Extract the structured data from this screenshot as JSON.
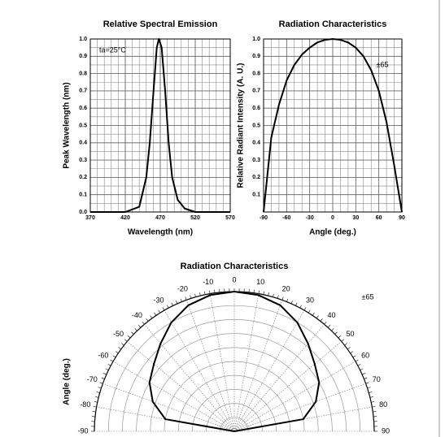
{
  "chart_data": [
    {
      "type": "line",
      "title": "Relative Spectral Emission",
      "x_label": "Wavelength (nm)",
      "y_label": "Peak Wavelength (nm)",
      "annotation": "ta=25°C",
      "x": [
        370,
        420,
        440,
        450,
        455,
        460,
        465,
        468,
        472,
        477,
        482,
        487,
        495,
        505,
        520,
        570
      ],
      "values": [
        0,
        0,
        0.03,
        0.2,
        0.4,
        0.68,
        0.95,
        1.0,
        0.95,
        0.7,
        0.4,
        0.2,
        0.07,
        0.02,
        0,
        0
      ],
      "color": "#000000",
      "xlim": [
        370,
        570
      ],
      "xticks": [
        370,
        420,
        470,
        520,
        570
      ],
      "ylim": [
        0,
        1
      ],
      "yticks": [
        {
          "value": 0,
          "label": "0.0"
        },
        0.1,
        0.2,
        0.3,
        0.4,
        0.5,
        0.6,
        0.7,
        0.8,
        0.9,
        {
          "value": 1,
          "label": "1.0"
        }
      ],
      "grid": true
    },
    {
      "type": "line",
      "title": "Radiation Characteristics",
      "x_label": "Angle (deg.)",
      "y_label": "Relative Radiant Intensity (A. U.)",
      "annotation": "±65",
      "x": [
        -90,
        -80,
        -70,
        -60,
        -50,
        -40,
        -30,
        -20,
        -10,
        0,
        10,
        20,
        30,
        40,
        50,
        60,
        70,
        80,
        90
      ],
      "values": [
        0,
        0.43,
        0.62,
        0.76,
        0.85,
        0.91,
        0.95,
        0.98,
        0.995,
        1.0,
        0.995,
        0.98,
        0.95,
        0.9,
        0.82,
        0.7,
        0.52,
        0.27,
        0
      ],
      "color": "#000000",
      "xlim": [
        -90,
        90
      ],
      "xticks": [
        -90,
        -60,
        -30,
        0,
        30,
        60,
        90
      ],
      "ylim": [
        0,
        1
      ],
      "yticks": [
        0.1,
        0.2,
        0.3,
        0.4,
        0.5,
        0.6,
        0.7,
        0.8,
        0.9,
        {
          "value": 1,
          "label": "1.0"
        }
      ],
      "grid": true
    },
    {
      "type": "polar",
      "title": "Radiation Characteristics",
      "y_label": "Angle (deg.)",
      "annotation": "±65",
      "theta": [
        -90,
        -80,
        -70,
        -60,
        -50,
        -40,
        -30,
        -20,
        -10,
        0,
        10,
        20,
        30,
        40,
        50,
        60,
        70,
        80,
        90
      ],
      "r": [
        0,
        0.5,
        0.62,
        0.7,
        0.75,
        0.82,
        0.9,
        0.96,
        0.99,
        1.0,
        0.99,
        0.96,
        0.9,
        0.82,
        0.75,
        0.7,
        0.62,
        0.5,
        0
      ],
      "color": "#000000",
      "rlim": [
        0,
        1
      ],
      "thetaticks": [
        -90,
        -80,
        -70,
        -60,
        -50,
        -40,
        -30,
        -20,
        -10,
        0,
        10,
        20,
        30,
        40,
        50,
        60,
        70,
        80,
        90
      ],
      "grid": true
    }
  ]
}
